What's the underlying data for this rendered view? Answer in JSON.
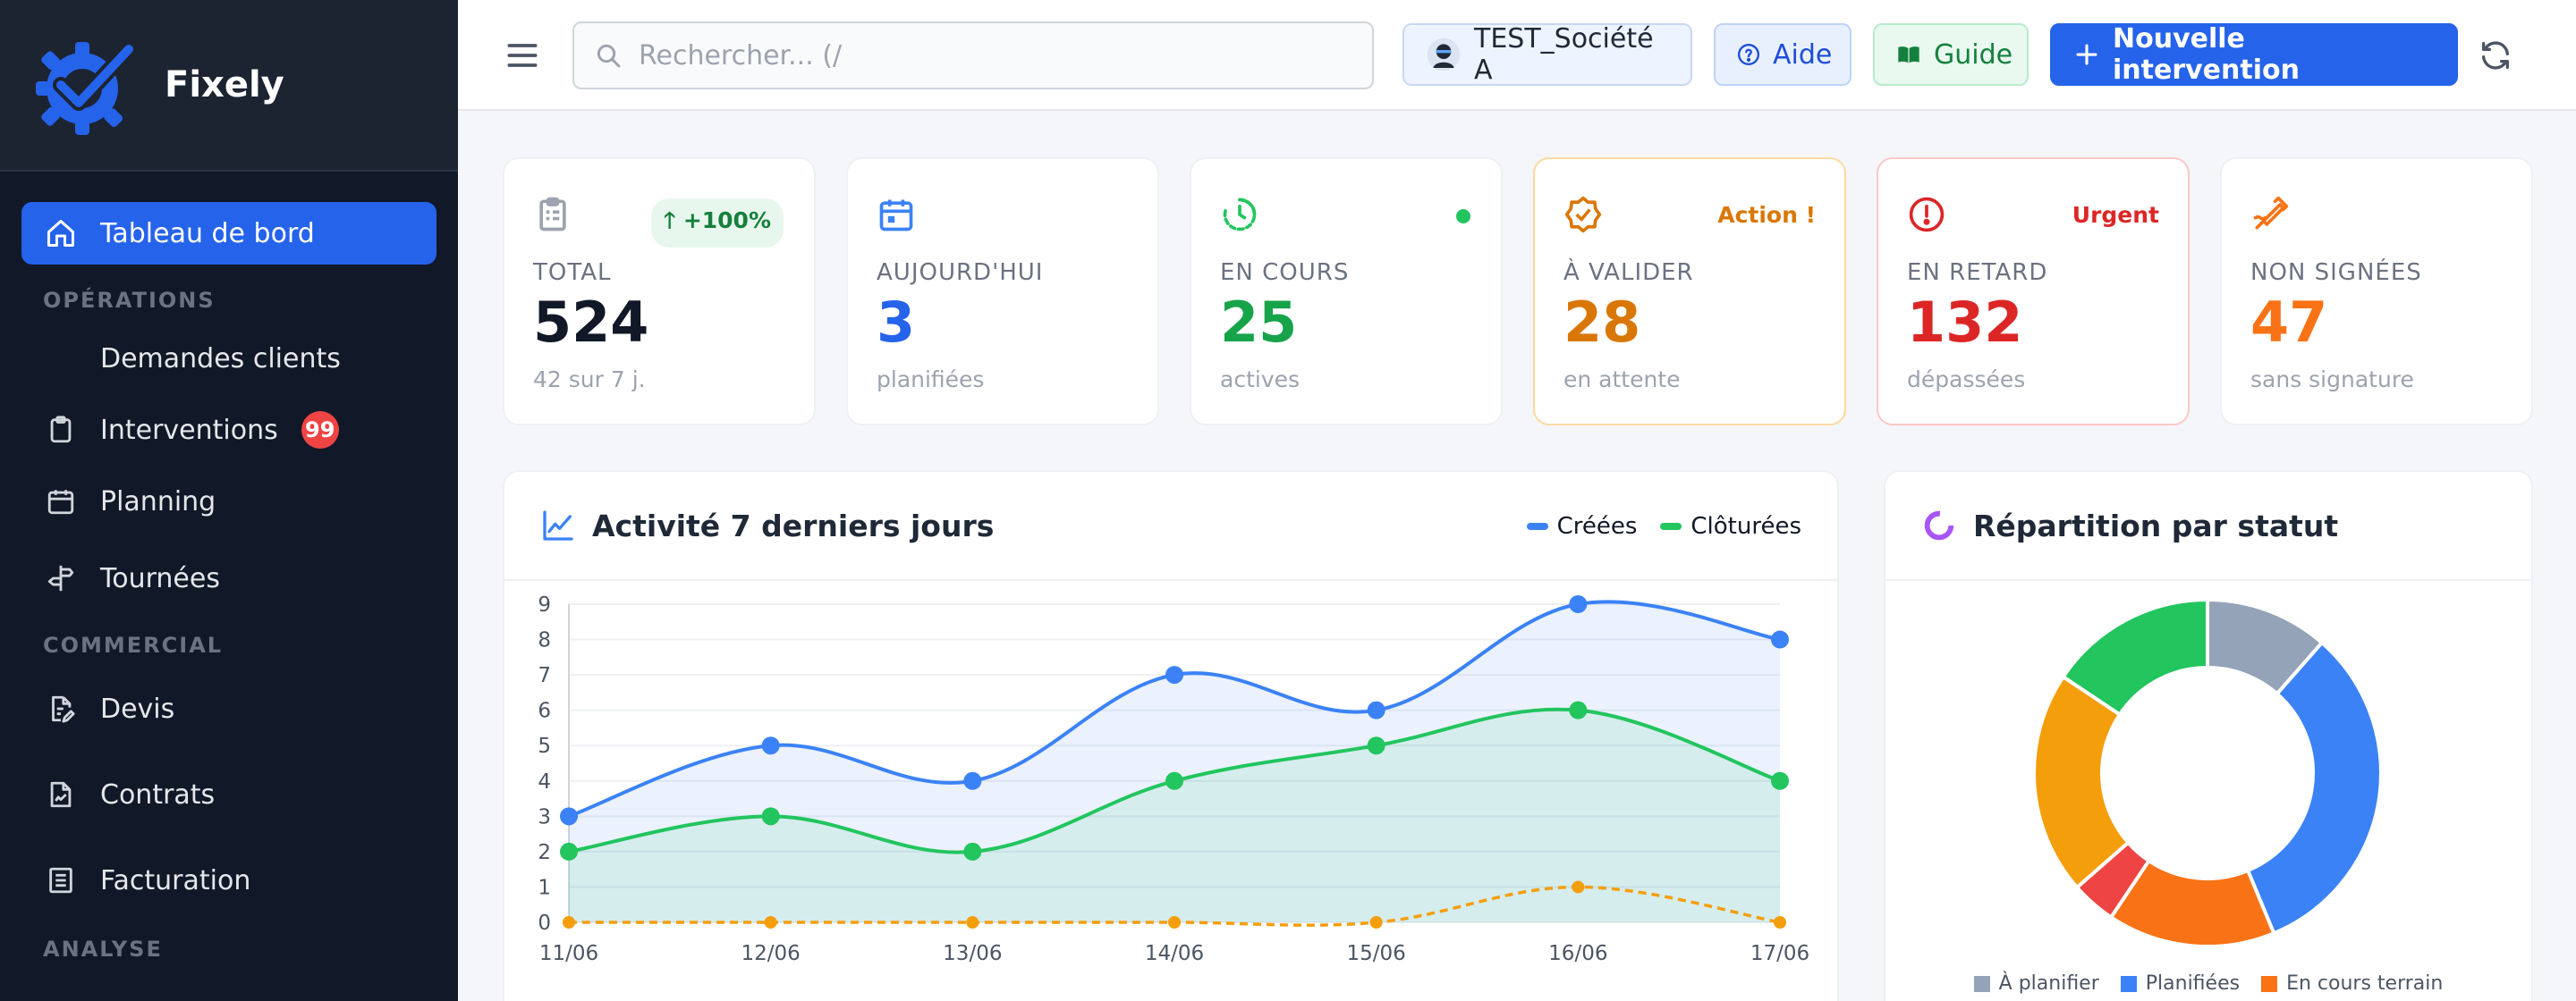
{
  "brand": {
    "name": "Fixely"
  },
  "sidebar": {
    "active": "Tableau de bord",
    "items_top": [
      {
        "label": "Tableau de bord",
        "icon": "home-icon"
      }
    ],
    "section_ops": "OPÉRATIONS",
    "items_ops": [
      {
        "label": "Demandes clients",
        "icon": ""
      },
      {
        "label": "Interventions",
        "icon": "clipboard-icon",
        "badge": "99"
      },
      {
        "label": "Planning",
        "icon": "calendar-icon"
      },
      {
        "label": "Tournées",
        "icon": "signpost-icon"
      }
    ],
    "section_com": "COMMERCIAL",
    "items_com": [
      {
        "label": "Devis",
        "icon": "document-edit-icon"
      },
      {
        "label": "Contrats",
        "icon": "contract-icon"
      },
      {
        "label": "Facturation",
        "icon": "invoice-icon"
      }
    ],
    "section_analyse": "ANALYSE"
  },
  "header": {
    "search_placeholder": "Rechercher... (/",
    "company": "TEST_Société A",
    "aide": "Aide",
    "guide": "Guide",
    "new_intervention": "Nouvelle intervention"
  },
  "kpis": [
    {
      "label": "TOTAL",
      "value": "524",
      "sub": "42 sur 7 j.",
      "tag": "+100%",
      "color": "#111827",
      "icon": "clipboard-list-icon"
    },
    {
      "label": "AUJOURD'HUI",
      "value": "3",
      "sub": "planifiées",
      "tag": "",
      "color": "#2563eb",
      "icon": "calendar-icon"
    },
    {
      "label": "EN COURS",
      "value": "25",
      "sub": "actives",
      "tag": "",
      "color": "#16a34a",
      "icon": "clock-icon"
    },
    {
      "label": "À VALIDER",
      "value": "28",
      "sub": "en attente",
      "tag": "Action !",
      "color": "#d97706",
      "icon": "badge-check-icon"
    },
    {
      "label": "EN RETARD",
      "value": "132",
      "sub": "dépassées",
      "tag": "Urgent",
      "color": "#dc2626",
      "icon": "alert-circle-icon"
    },
    {
      "label": "NON SIGNÉES",
      "value": "47",
      "sub": "sans signature",
      "tag": "",
      "color": "#f97316",
      "icon": "signature-icon"
    }
  ],
  "activity": {
    "title": "Activité 7 derniers jours",
    "legend_created": "Créées",
    "legend_closed": "Clôturées"
  },
  "repartition": {
    "title": "Répartition par statut",
    "legend": [
      "À planifier",
      "Planifiées",
      "En cours terrain"
    ]
  },
  "chart_data": [
    {
      "type": "line",
      "title": "Activité 7 derniers jours",
      "x": [
        "11/06",
        "12/06",
        "13/06",
        "14/06",
        "15/06",
        "16/06",
        "17/06"
      ],
      "ylim": [
        0,
        9
      ],
      "yticks": [
        0,
        1,
        2,
        3,
        4,
        5,
        6,
        7,
        8,
        9
      ],
      "grid": true,
      "legend": "top-right",
      "series": [
        {
          "name": "Créées",
          "values": [
            3,
            5,
            4,
            7,
            6,
            9,
            8
          ],
          "color": "#3b82f6",
          "fill": true
        },
        {
          "name": "Clôturées",
          "values": [
            2,
            3,
            2,
            4,
            5,
            6,
            4
          ],
          "color": "#22c55e",
          "fill": true
        },
        {
          "values": [
            0,
            0,
            0,
            0,
            0,
            1,
            0
          ],
          "color": "#f59e0b",
          "dashed": true
        }
      ]
    },
    {
      "type": "pie",
      "title": "Répartition par statut",
      "donut": true,
      "slices": [
        {
          "label": "À planifier",
          "value": 11,
          "color": "#94a3b8"
        },
        {
          "label": "Planifiées",
          "value": 31,
          "color": "#3b82f6"
        },
        {
          "label": "En cours terrain",
          "value": 15,
          "color": "#f97316"
        },
        {
          "value": 4,
          "color": "#ef4444"
        },
        {
          "value": 20,
          "color": "#f59e0b"
        },
        {
          "value": 15,
          "color": "#22c55e"
        }
      ]
    }
  ]
}
